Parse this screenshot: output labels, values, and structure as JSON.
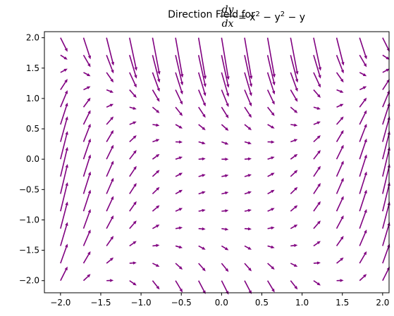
{
  "chart_data": {
    "type": "quiver",
    "title": {
      "prefix": "Direction Field for ",
      "numerator": "dy",
      "denominator": "dx",
      "rhs": "= x",
      "exp1": "2",
      "minus1": " − y",
      "exp2": "2",
      "tail": " − y"
    },
    "equation": "dy/dx = x^2 - y^2 - y",
    "x_range": [
      -2,
      2
    ],
    "y_range": [
      -2,
      2
    ],
    "grid_count": 15,
    "xlim": [
      -2.2,
      2.08
    ],
    "ylim": [
      -2.2,
      2.1
    ],
    "xticks": [
      -2.0,
      -1.5,
      -1.0,
      -0.5,
      0.0,
      0.5,
      1.0,
      1.5,
      2.0
    ],
    "xtick_labels": [
      "−2.0",
      "−1.5",
      "−1.0",
      "−0.5",
      "0.0",
      "0.5",
      "1.0",
      "1.5",
      "2.0"
    ],
    "yticks": [
      -2.0,
      -1.5,
      -1.0,
      -0.5,
      0.0,
      0.5,
      1.0,
      1.5,
      2.0
    ],
    "ytick_labels": [
      "−2.0",
      "−1.5",
      "−1.0",
      "−0.5",
      "0.0",
      "0.5",
      "1.0",
      "1.5",
      "2.0"
    ],
    "arrow_color": "#800080",
    "grid": false,
    "legend": "none"
  }
}
